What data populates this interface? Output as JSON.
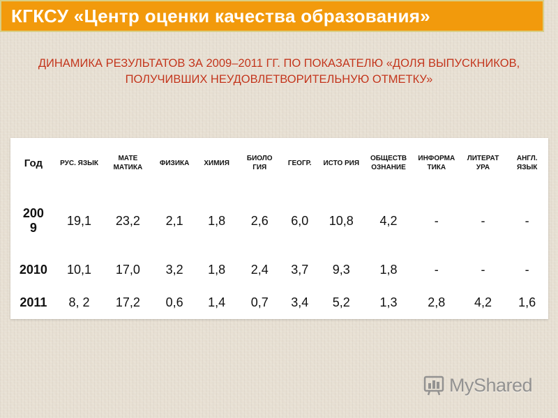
{
  "title": "КГКСУ «Центр оценки качества образования»",
  "subtitle_line1": "ДИНАМИКА РЕЗУЛЬТАТОВ ЗА 2009–2011 ГГ. ПО ПОКАЗАТЕЛЮ «ДОЛЯ ВЫПУСКНИКОВ,",
  "subtitle_line2": "ПОЛУЧИВШИХ НЕУДОВЛЕТВОРИТЕЛЬНУЮ ОТМЕТКУ»",
  "table": {
    "headers": [
      "Год",
      "РУС. ЯЗЫК",
      "МАТЕ МАТИКА",
      "ФИЗИКА",
      "ХИМИЯ",
      "БИОЛО ГИЯ",
      "ГЕОГР.",
      "ИСТО РИЯ",
      "ОБЩЕСТВ ОЗНАНИЕ",
      "ИНФОРМА ТИКА",
      "ЛИТЕРАТ УРА",
      "АНГЛ. ЯЗЫК"
    ],
    "rows": [
      [
        "2009",
        "19,1",
        "23,2",
        "2,1",
        "1,8",
        "2,6",
        "6,0",
        "10,8",
        "4,2",
        "-",
        "-",
        "-"
      ],
      [
        "2010",
        "10,1",
        "17,0",
        "3,2",
        "1,8",
        "2,4",
        "3,7",
        "9,3",
        "1,8",
        "-",
        "-",
        "-"
      ],
      [
        "2011",
        "8, 2",
        "17,2",
        "0,6",
        "1,4",
        "0,7",
        "3,4",
        "5,2",
        "1,3",
        "2,8",
        "4,2",
        "1,6"
      ]
    ]
  },
  "watermark": {
    "text": "MyShared",
    "icon": "myshared-logo-icon"
  },
  "colors": {
    "title_bar": "#f29a0c",
    "subtitle": "#c2341a",
    "table_bg": "#ffffff"
  }
}
